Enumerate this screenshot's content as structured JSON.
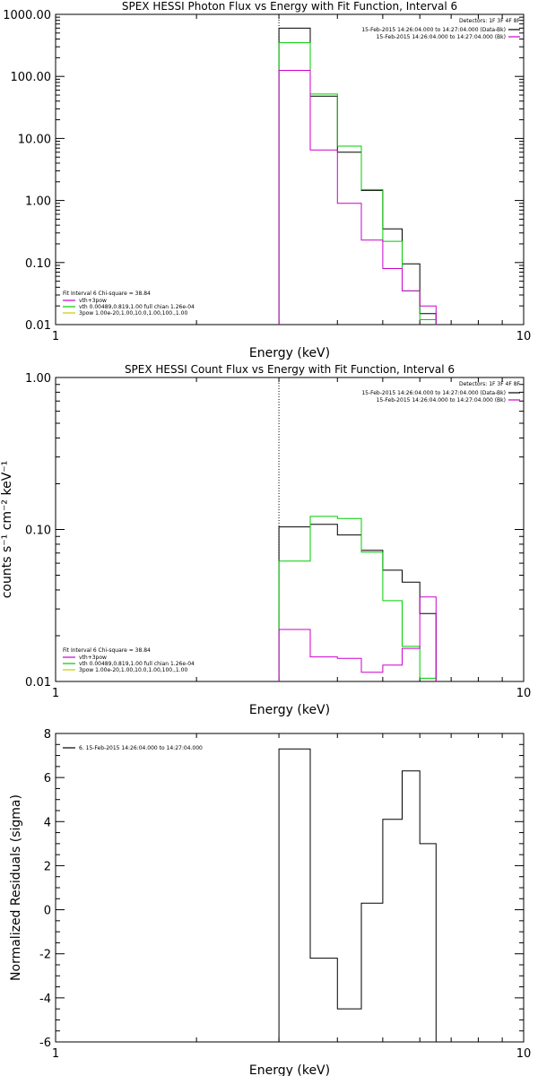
{
  "chart_data": [
    {
      "type": "line",
      "title": "SPEX HESSI Photon Flux vs Energy with Fit Function, Interval 6",
      "xlabel": "Energy (keV)",
      "ylabel": "",
      "xscale": "log",
      "yscale": "log",
      "xlim": [
        1,
        10
      ],
      "ylim": [
        0.01,
        1000
      ],
      "xtick_labels": [
        "1",
        "10"
      ],
      "ytick_labels": [
        "0.01",
        "0.10",
        "1.00",
        "10.00",
        "100.00",
        "1000.00"
      ],
      "edges": [
        3,
        3.5,
        4,
        4.5,
        5,
        5.5,
        6,
        6.5
      ],
      "dotted_line_x": 3,
      "legend_right": {
        "placement": "top-right",
        "title": "Detectors: 1F 3F 4F 8F",
        "entries": [
          {
            "text": "15-Feb-2015 14:26:04.000 to 14:27:04.000 (Data-Bk)",
            "color": "#000000"
          },
          {
            "text": "15-Feb-2015 14:26:04.000 to 14:27:04.000 (Bk)",
            "color": "#cc00cc"
          }
        ]
      },
      "legend_left": {
        "placement": "bottom-left",
        "title": "Fit Interval  6   Chi-square = 38.84",
        "entries": [
          {
            "text": "vth+3pow",
            "color": "#cc00cc"
          },
          {
            "text": "vth 0.00489,0.819,1.00   full chian 1.26e-04",
            "color": "#00cc00"
          },
          {
            "text": "3pow 1.00e-20,1.00,10.0,1.00,100.,1.00",
            "color": "#cccc00"
          }
        ]
      },
      "series": [
        {
          "name": "Data-Bk",
          "color": "#000000",
          "values": [
            600,
            48,
            6,
            1.45,
            0.35,
            0.095,
            0.015
          ]
        },
        {
          "name": "vth",
          "color": "#00cc00",
          "values": [
            350,
            52,
            7.5,
            1.5,
            0.22,
            0.035,
            0.012
          ]
        },
        {
          "name": "Bk",
          "color": "#cc00cc",
          "values": [
            125,
            6.5,
            0.9,
            0.23,
            0.08,
            0.035,
            0.02
          ]
        }
      ]
    },
    {
      "type": "line",
      "title": "SPEX HESSI Count Flux vs Energy with Fit Function, Interval 6",
      "xlabel": "Energy (keV)",
      "ylabel": "counts s⁻¹ cm⁻² keV⁻¹",
      "xscale": "log",
      "yscale": "log",
      "xlim": [
        1,
        10
      ],
      "ylim": [
        0.01,
        1
      ],
      "xtick_labels": [
        "1",
        "10"
      ],
      "ytick_labels": [
        "0.01",
        "0.10",
        "1.00"
      ],
      "edges": [
        3,
        3.5,
        4,
        4.5,
        5,
        5.5,
        6,
        6.5
      ],
      "dotted_line_x": 3,
      "legend_right": {
        "placement": "top-right",
        "title": "Detectors: 1F 3F 4F 8F",
        "entries": [
          {
            "text": "15-Feb-2015 14:26:04.000 to 14:27:04.000 (Data-Bk)",
            "color": "#000000"
          },
          {
            "text": "15-Feb-2015 14:26:04.000 to 14:27:04.000 (Bk)",
            "color": "#cc00cc"
          }
        ]
      },
      "legend_left": {
        "placement": "bottom-left",
        "title": "Fit Interval  6   Chi-square = 38.84",
        "entries": [
          {
            "text": "vth+3pow",
            "color": "#cc00cc"
          },
          {
            "text": "vth 0.00489,0.819,1.00   full chian 1.26e-04",
            "color": "#00cc00"
          },
          {
            "text": "3pow 1.00e-20,1.00,10.0,1.00,100.,1.00",
            "color": "#cccc00"
          }
        ]
      },
      "series": [
        {
          "name": "Data-Bk",
          "color": "#000000",
          "values": [
            0.104,
            0.108,
            0.092,
            0.073,
            0.054,
            0.045,
            0.028
          ]
        },
        {
          "name": "vth",
          "color": "#00cc00",
          "values": [
            0.062,
            0.122,
            0.118,
            0.071,
            0.034,
            0.017,
            0.0105
          ]
        },
        {
          "name": "Bk",
          "color": "#cc00cc",
          "values": [
            0.022,
            0.0145,
            0.0142,
            0.0115,
            0.0128,
            0.0165,
            0.036
          ]
        }
      ]
    },
    {
      "type": "line",
      "title": "",
      "xlabel": "Energy (keV)",
      "ylabel": "Normalized Residuals (sigma)",
      "xscale": "log",
      "yscale": "linear",
      "xlim": [
        1,
        10
      ],
      "ylim": [
        -6,
        8
      ],
      "xtick_labels": [
        "1",
        "10"
      ],
      "ytick_labels": [
        "8",
        "6",
        "4",
        "2",
        "0",
        "-2",
        "-4",
        "-6"
      ],
      "edges": [
        3,
        3.5,
        4,
        4.5,
        5,
        5.5,
        6,
        6.5
      ],
      "legend_left": {
        "placement": "top-left",
        "title": "",
        "entries": [
          {
            "text": "6. 15-Feb-2015 14:26:04.000 to 14:27:04.000",
            "color": "#000000"
          }
        ]
      },
      "series": [
        {
          "name": "",
          "color": "#000000",
          "values": [
            7.3,
            -2.2,
            -4.5,
            0.3,
            4.1,
            6.3,
            3.0
          ]
        }
      ]
    }
  ]
}
